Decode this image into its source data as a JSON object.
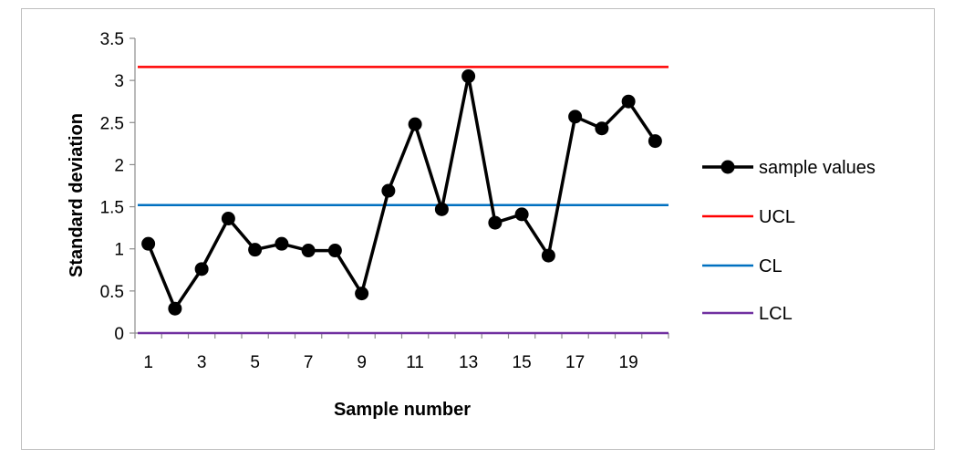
{
  "chart_data": {
    "type": "line",
    "title": "",
    "xlabel": "Sample number",
    "ylabel": "Standard deviation",
    "xlim": [
      1,
      20
    ],
    "ylim": [
      0,
      3.5
    ],
    "y_ticks": [
      "0",
      "0.5",
      "1",
      "1.5",
      "2",
      "2.5",
      "3",
      "3.5"
    ],
    "x_ticks": [
      "1",
      "3",
      "5",
      "7",
      "9",
      "11",
      "13",
      "15",
      "17",
      "19"
    ],
    "grid": false,
    "legend_position": "right",
    "x": [
      1,
      2,
      3,
      4,
      5,
      6,
      7,
      8,
      9,
      10,
      11,
      12,
      13,
      14,
      15,
      16,
      17,
      18,
      19,
      20
    ],
    "series": [
      {
        "name": "sample values",
        "color": "#000000",
        "marker": "circle",
        "values": [
          1.06,
          0.29,
          0.76,
          1.36,
          0.99,
          1.06,
          0.98,
          0.98,
          0.47,
          1.69,
          2.48,
          1.47,
          3.05,
          1.31,
          1.41,
          0.92,
          2.57,
          2.43,
          2.75,
          2.28
        ]
      },
      {
        "name": "UCL",
        "color": "#ff0000",
        "marker": "none",
        "value": 3.16
      },
      {
        "name": "CL",
        "color": "#0070c0",
        "marker": "none",
        "value": 1.52
      },
      {
        "name": "LCL",
        "color": "#7030a0",
        "marker": "none",
        "value": 0
      }
    ]
  }
}
